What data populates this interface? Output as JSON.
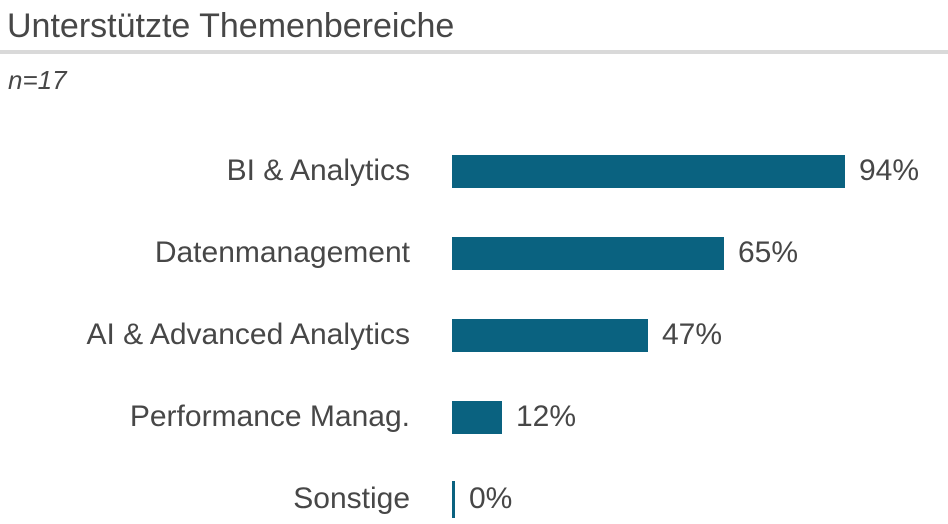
{
  "header": {
    "title": "Unterstützte Themenbereiche",
    "sample_note": "n=17"
  },
  "colors": {
    "bar": "#0a6280",
    "text": "#474747",
    "divider": "#d9d9d9",
    "background": "#ffffff"
  },
  "chart_data": {
    "type": "bar",
    "orientation": "horizontal",
    "title": "Unterstützte Themenbereiche",
    "subtitle": "n=17",
    "categories": [
      "BI & Analytics",
      "Datenmanagement",
      "AI & Advanced Analytics",
      "Performance Manag.",
      "Sonstige"
    ],
    "values": [
      94,
      65,
      47,
      12,
      0
    ],
    "value_suffix": "%",
    "xlim": [
      0,
      100
    ],
    "grid": false,
    "legend": false,
    "value_labels": "end-of-bar"
  }
}
